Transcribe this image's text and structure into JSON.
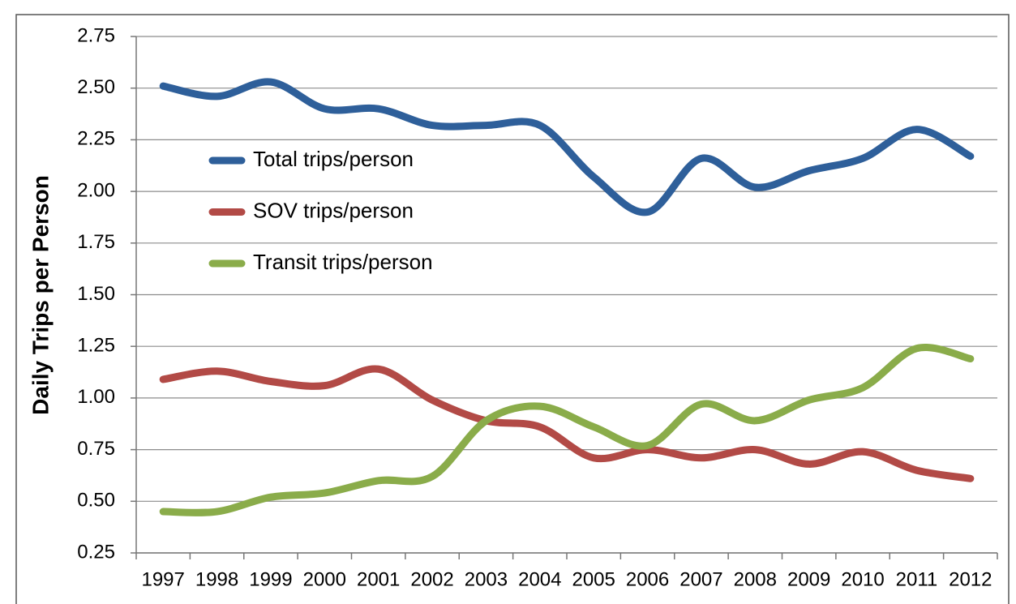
{
  "chart_data": {
    "type": "line",
    "y_label": "Daily Trips per Person",
    "categories": [
      "1997",
      "1998",
      "1999",
      "2000",
      "2001",
      "2002",
      "2003",
      "2004",
      "2005",
      "2006",
      "2007",
      "2008",
      "2009",
      "2010",
      "2011",
      "2012"
    ],
    "series": [
      {
        "name": "Total trips/person",
        "color": "#2e5f9a",
        "values": [
          2.51,
          2.46,
          2.53,
          2.4,
          2.4,
          2.32,
          2.32,
          2.32,
          2.07,
          1.9,
          2.16,
          2.02,
          2.1,
          2.16,
          2.3,
          2.17
        ]
      },
      {
        "name": "SOV trips/person",
        "color": "#b24a46",
        "values": [
          1.09,
          1.13,
          1.08,
          1.06,
          1.14,
          0.99,
          0.89,
          0.86,
          0.71,
          0.75,
          0.71,
          0.75,
          0.68,
          0.74,
          0.65,
          0.61
        ]
      },
      {
        "name": "Transit trips/person",
        "color": "#8aac4a",
        "values": [
          0.45,
          0.45,
          0.52,
          0.54,
          0.6,
          0.62,
          0.89,
          0.96,
          0.86,
          0.77,
          0.97,
          0.89,
          0.99,
          1.05,
          1.24,
          1.19
        ]
      }
    ],
    "ylim": [
      0.25,
      2.75
    ],
    "yticks": [
      0.25,
      {
        "value": 0.5,
        "label": "0.50"
      },
      0.75,
      {
        "value": 1,
        "label": "1.00"
      },
      1.25,
      {
        "value": 1.5,
        "label": "1.50"
      },
      1.75,
      {
        "value": 2,
        "label": "2.00"
      },
      2.25,
      {
        "value": 2.5,
        "label": "2.50"
      },
      2.75
    ],
    "grid": true,
    "legend": "upper-left"
  }
}
